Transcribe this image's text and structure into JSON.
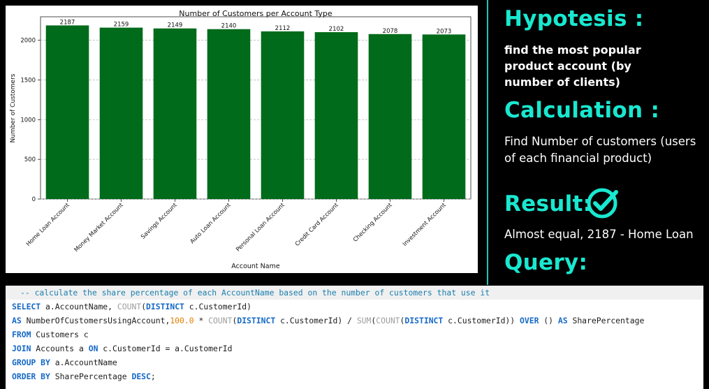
{
  "chart_data": {
    "type": "bar",
    "title": "Number of Customers per Account Type",
    "xlabel": "Account Name",
    "ylabel": "Number of Customers",
    "categories": [
      "Home Loan Account",
      "Money Market Account",
      "Savings Account",
      "Auto Loan Account",
      "Personal Loan Account",
      "Credit Card Account",
      "Checking Account",
      "Investment Account"
    ],
    "values": [
      2187,
      2159,
      2149,
      2140,
      2112,
      2102,
      2078,
      2073
    ],
    "ylim": [
      0,
      2296
    ],
    "yticks": [
      0,
      500,
      1000,
      1500,
      2000
    ],
    "grid": "horizontal dashed",
    "bar_color": "#006b1a"
  },
  "side": {
    "hypothesis_heading": "Hypotesis :",
    "hypothesis_text": "find the most popular product account (by number of clients)",
    "calculation_heading": "Calculation :",
    "calculation_text": "Find Number of customers (users of each financial product)",
    "result_heading": "Result:",
    "result_text": "Almost equal, 2187 - Home Loan",
    "query_heading": "Query:",
    "check_icon": "check-circle-icon",
    "accent_color": "#19e8d0"
  },
  "code": {
    "comment": "-- calculate the share percentage of each AccountName based on the number of customers that use it",
    "l1_kw": "SELECT",
    "l1_a": " a.AccountName, ",
    "l1_fn": "COUNT",
    "l1_b": "(",
    "l1_kw2": "DISTINCT",
    "l1_c": " c.CustomerId)",
    "l2_kw": "AS",
    "l2_a": " NumberOfCustomersUsingAccount,",
    "l2_num": "100.0",
    "l2_b": " * ",
    "l2_fn": "COUNT",
    "l2_c": "(",
    "l2_kw2": "DISTINCT",
    "l2_d": " c.CustomerId) / ",
    "l2_fn2": "SUM",
    "l2_e": "(",
    "l2_fn3": "COUNT",
    "l2_f": "(",
    "l2_kw3": "DISTINCT",
    "l2_g": " c.CustomerId)) ",
    "l2_kw4": "OVER",
    "l2_h": " () ",
    "l2_kw5": "AS",
    "l2_i": " SharePercentage",
    "l3_kw": "FROM",
    "l3_a": " Customers c",
    "l4_kw": "JOIN",
    "l4_a": " Accounts a ",
    "l4_kw2": "ON",
    "l4_b": " c.CustomerId = a.CustomerId",
    "l5_kw": "GROUP BY",
    "l5_a": " a.AccountName",
    "l6_kw": "ORDER BY",
    "l6_a": " SharePercentage ",
    "l6_kw2": "DESC",
    "l6_b": ";"
  }
}
